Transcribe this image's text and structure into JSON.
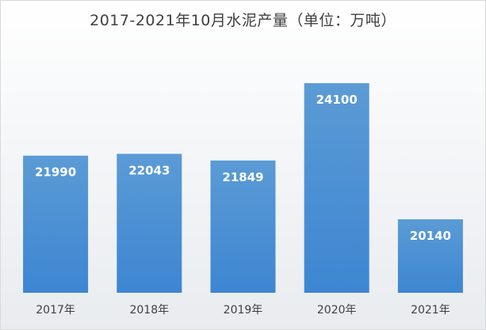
{
  "chart_data": {
    "type": "bar",
    "title": "2017-2021年10月水泥产量（单位：万吨）",
    "categories": [
      "2017年",
      "2018年",
      "2019年",
      "2020年",
      "2021年"
    ],
    "values": [
      21990,
      22043,
      21849,
      24100,
      20140
    ],
    "value_labels": [
      "21990",
      "22043",
      "21849",
      "24100",
      "20140"
    ],
    "ylim": [
      18000,
      25000
    ],
    "grid": false,
    "legend": "none",
    "bar_color": "#3d86d2",
    "bar_color_top": "#5b9bd5",
    "label_color": "#ffffff"
  }
}
